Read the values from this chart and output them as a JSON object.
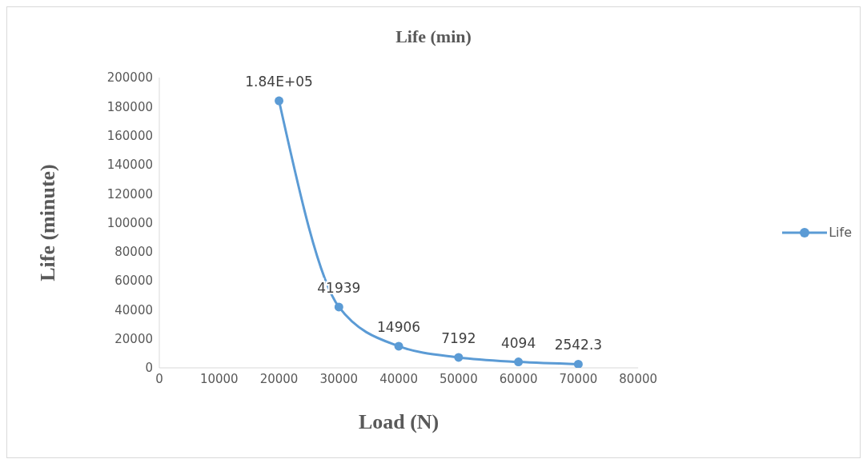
{
  "chart_data": {
    "type": "line",
    "title": "Life (min)",
    "xlabel": "Load (N)",
    "ylabel": "Life (minute)",
    "x": [
      20000,
      30000,
      40000,
      50000,
      60000,
      70000
    ],
    "series": [
      {
        "name": "Life",
        "color": "#5b9bd5",
        "values": [
          184000,
          41939,
          14906,
          7192,
          4094,
          2542.3
        ],
        "value_labels": [
          "1.84E+05",
          "41939",
          "14906",
          "7192",
          "4094",
          "2542.3"
        ]
      }
    ],
    "xlim": [
      0,
      80000
    ],
    "xticks": [
      0,
      10000,
      20000,
      30000,
      40000,
      50000,
      60000,
      70000,
      80000
    ],
    "ylim": [
      0,
      200000
    ],
    "yticks": [
      0,
      20000,
      40000,
      60000,
      80000,
      100000,
      120000,
      140000,
      160000,
      180000,
      200000
    ],
    "grid": false,
    "legend": "right",
    "marker": "circle",
    "line_style": "solid"
  }
}
